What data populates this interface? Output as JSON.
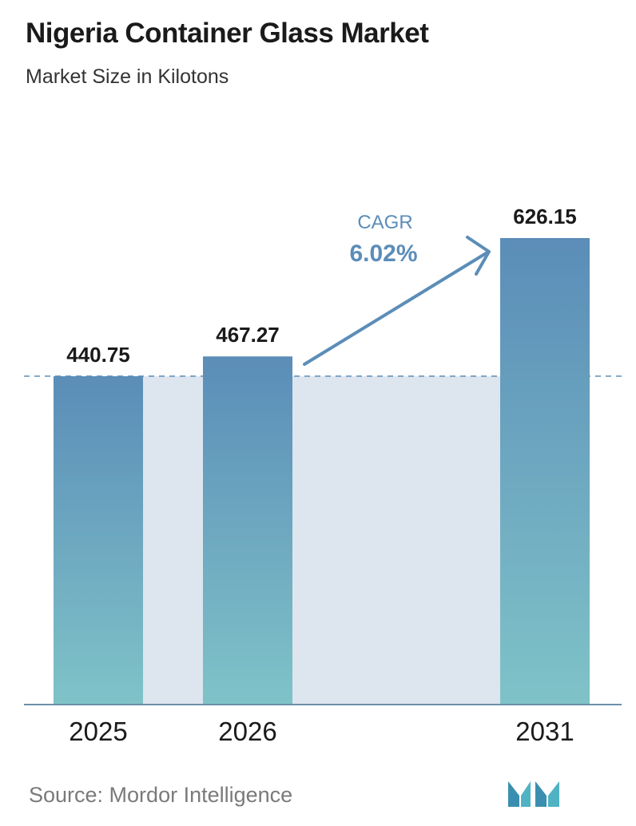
{
  "header": {
    "title": "Nigeria Container Glass Market",
    "subtitle": "Market Size in Kilotons"
  },
  "chart_data": {
    "type": "bar",
    "title": "Nigeria Container Glass Market",
    "subtitle": "Market Size in Kilotons",
    "xlabel": "",
    "ylabel": "",
    "categories": [
      "2025",
      "2026",
      "2031"
    ],
    "values": [
      440.75,
      467.27,
      626.15
    ],
    "value_labels": [
      "440.75",
      "467.27",
      "626.15"
    ],
    "ylim": [
      0,
      626.15
    ],
    "grid": false,
    "legend": "none",
    "annotation": {
      "cagr_label": "CAGR",
      "cagr_value": "6.02%"
    },
    "colors": {
      "bar_top": "#5b8db8",
      "bar_bottom": "#7fc3c8",
      "shade": "#dde5ef",
      "cagr": "#5b8db8",
      "baseline": "#6b8fa8"
    }
  },
  "footer": {
    "source": "Source:  Mordor Intelligence",
    "logo_icon": "mordor-intelligence-logo-icon"
  }
}
